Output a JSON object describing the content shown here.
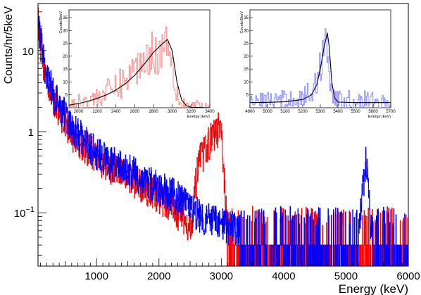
{
  "chart_data": [
    {
      "type": "line",
      "role": "main",
      "xlabel": "Energy (keV)",
      "ylabel": "Counts/hr/5keV",
      "xlim": [
        60,
        6000
      ],
      "ylim": [
        0.022,
        38
      ],
      "y_scale": "log",
      "x_ticks": [
        "1000",
        "2000",
        "3000",
        "4000",
        "5000",
        "6000"
      ],
      "y_ticks": [
        {
          "value": 0.1,
          "base": "10",
          "exp": "−1"
        },
        {
          "value": 1,
          "label": "1"
        },
        {
          "value": 10,
          "label": "10"
        }
      ],
      "grid": false,
      "legend": "none",
      "series": [
        {
          "color": "#ff0000",
          "style": "histogram",
          "points": [
            [
              60,
              25
            ],
            [
              100,
              12
            ],
            [
              150,
              6.5
            ],
            [
              200,
              4.5
            ],
            [
              300,
              2.6
            ],
            [
              400,
              1.8
            ],
            [
              500,
              1.3
            ],
            [
              600,
              0.95
            ],
            [
              800,
              0.65
            ],
            [
              1000,
              0.48
            ],
            [
              1200,
              0.36
            ],
            [
              1400,
              0.3
            ],
            [
              1600,
              0.25
            ],
            [
              1800,
              0.2
            ],
            [
              2000,
              0.16
            ],
            [
              2200,
              0.12
            ],
            [
              2400,
              0.08
            ],
            [
              2500,
              0.07
            ],
            [
              2550,
              0.1
            ],
            [
              2600,
              0.25
            ],
            [
              2650,
              0.42
            ],
            [
              2700,
              0.5
            ],
            [
              2750,
              0.6
            ],
            [
              2800,
              0.72
            ],
            [
              2850,
              0.82
            ],
            [
              2900,
              0.92
            ],
            [
              2950,
              1.05
            ],
            [
              3000,
              0.9
            ],
            [
              3030,
              0.45
            ],
            [
              3060,
              0.15
            ],
            [
              3100,
              0.05
            ],
            [
              3300,
              0.04
            ],
            [
              3600,
              0.04
            ],
            [
              4000,
              0.04
            ],
            [
              4500,
              0.04
            ],
            [
              5000,
              0.04
            ],
            [
              5500,
              0.04
            ],
            [
              6000,
              0.04
            ]
          ]
        },
        {
          "color": "#0000ff",
          "style": "histogram",
          "points": [
            [
              60,
              22
            ],
            [
              100,
              13
            ],
            [
              150,
              7.5
            ],
            [
              200,
              5
            ],
            [
              300,
              2.8
            ],
            [
              400,
              2
            ],
            [
              500,
              1.5
            ],
            [
              600,
              1.1
            ],
            [
              800,
              0.75
            ],
            [
              1000,
              0.55
            ],
            [
              1200,
              0.42
            ],
            [
              1400,
              0.35
            ],
            [
              1600,
              0.3
            ],
            [
              1800,
              0.24
            ],
            [
              2000,
              0.2
            ],
            [
              2200,
              0.17
            ],
            [
              2400,
              0.13
            ],
            [
              2600,
              0.1
            ],
            [
              2800,
              0.08
            ],
            [
              3000,
              0.07
            ],
            [
              3300,
              0.06
            ],
            [
              3600,
              0.05
            ],
            [
              4000,
              0.045
            ],
            [
              4500,
              0.04
            ],
            [
              5000,
              0.04
            ],
            [
              5200,
              0.06
            ],
            [
              5250,
              0.12
            ],
            [
              5300,
              0.3
            ],
            [
              5330,
              0.45
            ],
            [
              5350,
              0.25
            ],
            [
              5380,
              0.08
            ],
            [
              5450,
              0.05
            ],
            [
              5600,
              0.04
            ],
            [
              6000,
              0.04
            ]
          ]
        }
      ]
    },
    {
      "type": "line",
      "role": "inset",
      "xlabel": "Energy (keV)",
      "ylabel": "Counts/5keV",
      "xlim": [
        1900,
        3400
      ],
      "ylim": [
        0,
        38
      ],
      "x_ticks": [
        "2000",
        "2200",
        "2400",
        "2600",
        "2800",
        "3000",
        "3200",
        "3400"
      ],
      "y_ticks": [
        "5",
        "10",
        "15",
        "20",
        "25",
        "30",
        "35"
      ],
      "series": [
        {
          "color": "#ff8080",
          "style": "histogram",
          "points": [
            [
              1900,
              1
            ],
            [
              2000,
              2
            ],
            [
              2100,
              3
            ],
            [
              2200,
              4
            ],
            [
              2300,
              6
            ],
            [
              2400,
              8
            ],
            [
              2500,
              11
            ],
            [
              2600,
              15
            ],
            [
              2700,
              19
            ],
            [
              2800,
              22
            ],
            [
              2850,
              20
            ],
            [
              2900,
              24
            ],
            [
              2950,
              28
            ],
            [
              3000,
              18
            ],
            [
              3050,
              6
            ],
            [
              3100,
              2
            ],
            [
              3200,
              1
            ],
            [
              3400,
              0
            ]
          ]
        },
        {
          "color": "#000000",
          "style": "fit",
          "points": [
            [
              1900,
              1.0
            ],
            [
              2000,
              1.6
            ],
            [
              2100,
              2.5
            ],
            [
              2200,
              3.6
            ],
            [
              2300,
              5.0
            ],
            [
              2400,
              6.9
            ],
            [
              2500,
              9.3
            ],
            [
              2600,
              12.6
            ],
            [
              2700,
              16.8
            ],
            [
              2800,
              21.5
            ],
            [
              2900,
              25.0
            ],
            [
              2950,
              26.5
            ],
            [
              3000,
              22.0
            ],
            [
              3050,
              10.0
            ],
            [
              3100,
              3.0
            ],
            [
              3150,
              0.8
            ],
            [
              3200,
              0.2
            ],
            [
              3400,
              0
            ]
          ]
        }
      ]
    },
    {
      "type": "line",
      "role": "inset",
      "xlabel": "Energy (keV)",
      "ylabel": "Counts/5keV",
      "xlim": [
        4900,
        5700
      ],
      "ylim": [
        0,
        38
      ],
      "x_ticks": [
        "4900",
        "5000",
        "5100",
        "5200",
        "5300",
        "5400",
        "5500",
        "5600",
        "5700"
      ],
      "y_ticks": [
        "5",
        "10",
        "15",
        "20",
        "25",
        "30",
        "35"
      ],
      "series": [
        {
          "color": "#8080ff",
          "style": "histogram",
          "points": [
            [
              4900,
              2
            ],
            [
              5000,
              3
            ],
            [
              5100,
              3
            ],
            [
              5200,
              4
            ],
            [
              5250,
              6
            ],
            [
              5280,
              10
            ],
            [
              5300,
              16
            ],
            [
              5320,
              24
            ],
            [
              5335,
              30
            ],
            [
              5345,
              22
            ],
            [
              5360,
              8
            ],
            [
              5380,
              3
            ],
            [
              5450,
              3
            ],
            [
              5550,
              3
            ],
            [
              5650,
              2
            ],
            [
              5700,
              1
            ]
          ]
        },
        {
          "color": "#000000",
          "style": "fit",
          "points": [
            [
              4900,
              2.0
            ],
            [
              5000,
              2.1
            ],
            [
              5100,
              2.3
            ],
            [
              5200,
              3.2
            ],
            [
              5250,
              5.0
            ],
            [
              5280,
              9.0
            ],
            [
              5300,
              15.0
            ],
            [
              5320,
              23.0
            ],
            [
              5340,
              29.0
            ],
            [
              5350,
              24.0
            ],
            [
              5365,
              10.0
            ],
            [
              5380,
              4.0
            ],
            [
              5400,
              2.2
            ],
            [
              5500,
              2.0
            ],
            [
              5700,
              2.0
            ]
          ]
        }
      ]
    }
  ]
}
